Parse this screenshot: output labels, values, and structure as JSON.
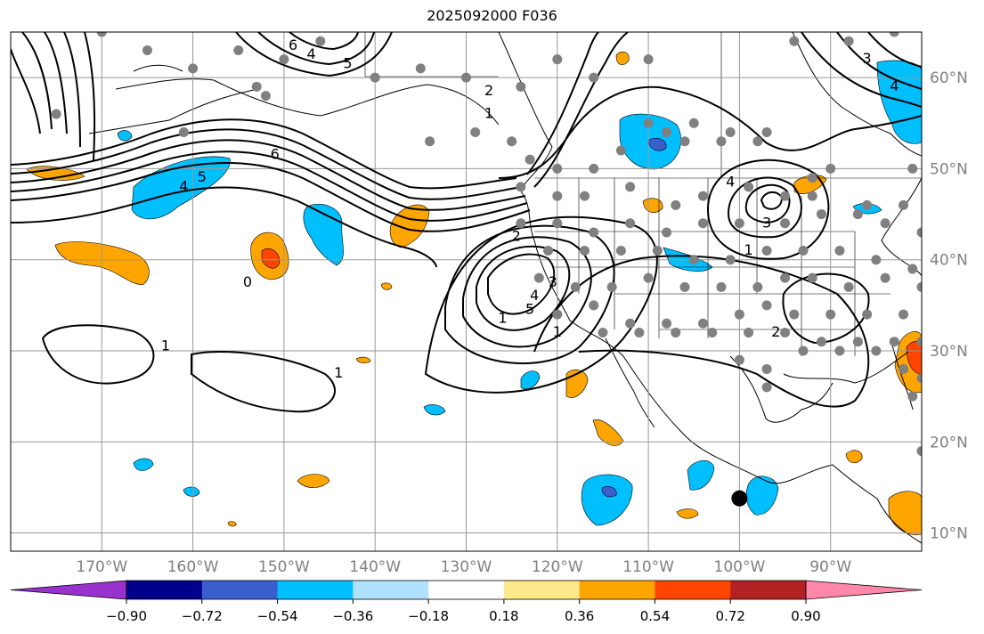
{
  "title": "2025092000 F036",
  "map": {
    "projection": "cylindrical",
    "lon_range": [
      -180,
      -80
    ],
    "lat_range": [
      8,
      65
    ],
    "lon_ticks": [
      {
        "value": -170,
        "label": "170°W"
      },
      {
        "value": -160,
        "label": "160°W"
      },
      {
        "value": -150,
        "label": "150°W"
      },
      {
        "value": -140,
        "label": "140°W"
      },
      {
        "value": -130,
        "label": "130°W"
      },
      {
        "value": -120,
        "label": "120°W"
      },
      {
        "value": -110,
        "label": "110°W"
      },
      {
        "value": -100,
        "label": "100°W"
      },
      {
        "value": -90,
        "label": "90°W"
      }
    ],
    "lat_ticks": [
      {
        "value": 10,
        "label": "10°N"
      },
      {
        "value": 20,
        "label": "20°N"
      },
      {
        "value": 30,
        "label": "30°N"
      },
      {
        "value": 40,
        "label": "40°N"
      },
      {
        "value": 50,
        "label": "50°N"
      },
      {
        "value": 60,
        "label": "60°N"
      }
    ],
    "contour_labels": [
      {
        "text": "6",
        "lon": -151,
        "lat": 51.5
      },
      {
        "text": "5",
        "lon": -159,
        "lat": 49
      },
      {
        "text": "4",
        "lon": -161,
        "lat": 48
      },
      {
        "text": "6",
        "lon": -149,
        "lat": 63.5
      },
      {
        "text": "5",
        "lon": -143,
        "lat": 61.5
      },
      {
        "text": "4",
        "lon": -147,
        "lat": 62.5
      },
      {
        "text": "2",
        "lon": -127.5,
        "lat": 58.5
      },
      {
        "text": "1",
        "lon": -127.5,
        "lat": 56
      },
      {
        "text": "2",
        "lon": -124.5,
        "lat": 42.5
      },
      {
        "text": "3",
        "lon": -120.5,
        "lat": 37.5
      },
      {
        "text": "4",
        "lon": -122.5,
        "lat": 36
      },
      {
        "text": "5",
        "lon": -123,
        "lat": 34.5
      },
      {
        "text": "1",
        "lon": -120,
        "lat": 32
      },
      {
        "text": "1",
        "lon": -163,
        "lat": 30.5
      },
      {
        "text": "1",
        "lon": -144,
        "lat": 27.5
      },
      {
        "text": "0",
        "lon": -154,
        "lat": 37.5
      },
      {
        "text": "1",
        "lon": -126,
        "lat": 33.5
      },
      {
        "text": "4",
        "lon": -101,
        "lat": 48.5
      },
      {
        "text": "3",
        "lon": -97,
        "lat": 44
      },
      {
        "text": "2",
        "lon": -96,
        "lat": 32
      },
      {
        "text": "1",
        "lon": -99,
        "lat": 41
      },
      {
        "text": "3",
        "lon": -86,
        "lat": 62
      },
      {
        "text": "4",
        "lon": -83,
        "lat": 59
      }
    ],
    "station_dots": [
      [
        -175,
        56
      ],
      [
        -170,
        65
      ],
      [
        -165,
        63
      ],
      [
        -160,
        61
      ],
      [
        -155,
        63
      ],
      [
        -153,
        59
      ],
      [
        -150,
        62
      ],
      [
        -146,
        64
      ],
      [
        -140,
        60
      ],
      [
        -135,
        61
      ],
      [
        -130,
        60
      ],
      [
        -124,
        59
      ],
      [
        -120,
        62
      ],
      [
        -116,
        60
      ],
      [
        -110,
        62
      ],
      [
        -105,
        55
      ],
      [
        -101,
        54
      ],
      [
        -97,
        54
      ],
      [
        -94,
        64
      ],
      [
        -88,
        64
      ],
      [
        -83,
        65
      ],
      [
        -161,
        54
      ],
      [
        -152,
        58
      ],
      [
        -134,
        53
      ],
      [
        -129,
        54
      ],
      [
        -125,
        53
      ],
      [
        -123,
        51
      ],
      [
        -120,
        50
      ],
      [
        -116,
        50
      ],
      [
        -113,
        52
      ],
      [
        -110,
        55
      ],
      [
        -108,
        54
      ],
      [
        -106,
        53
      ],
      [
        -102,
        53
      ],
      [
        -98,
        53
      ],
      [
        -92,
        49
      ],
      [
        -90,
        50
      ],
      [
        -81,
        50
      ],
      [
        -124,
        48
      ],
      [
        -120,
        47
      ],
      [
        -117,
        47
      ],
      [
        -112,
        48
      ],
      [
        -107,
        46
      ],
      [
        -104,
        47
      ],
      [
        -99,
        48
      ],
      [
        -95,
        47
      ],
      [
        -92,
        47
      ],
      [
        -86,
        46
      ],
      [
        -82,
        46
      ],
      [
        -124,
        44
      ],
      [
        -120,
        44
      ],
      [
        -116,
        43
      ],
      [
        -112,
        44
      ],
      [
        -108,
        43
      ],
      [
        -104,
        44
      ],
      [
        -100,
        44
      ],
      [
        -95,
        44
      ],
      [
        -91,
        45
      ],
      [
        -87,
        45
      ],
      [
        -84,
        44
      ],
      [
        -80,
        43
      ],
      [
        -121,
        41
      ],
      [
        -117,
        41
      ],
      [
        -113,
        41
      ],
      [
        -109,
        41
      ],
      [
        -105,
        40
      ],
      [
        -101,
        40
      ],
      [
        -97,
        41
      ],
      [
        -93,
        41
      ],
      [
        -89,
        41
      ],
      [
        -85,
        40
      ],
      [
        -81,
        39
      ],
      [
        -122,
        38
      ],
      [
        -118,
        37
      ],
      [
        -114,
        37
      ],
      [
        -110,
        38
      ],
      [
        -106,
        37
      ],
      [
        -102,
        37
      ],
      [
        -98,
        37
      ],
      [
        -95,
        38
      ],
      [
        -92,
        38
      ],
      [
        -88,
        37
      ],
      [
        -84,
        38
      ],
      [
        -80,
        37
      ],
      [
        -120,
        34
      ],
      [
        -116,
        35
      ],
      [
        -112,
        33
      ],
      [
        -108,
        33
      ],
      [
        -104,
        33
      ],
      [
        -100,
        34
      ],
      [
        -97,
        35
      ],
      [
        -94,
        34
      ],
      [
        -90,
        34
      ],
      [
        -86,
        34
      ],
      [
        -82,
        34
      ],
      [
        -115,
        32
      ],
      [
        -111,
        32
      ],
      [
        -107,
        32
      ],
      [
        -103,
        32
      ],
      [
        -99,
        32
      ],
      [
        -95,
        32
      ],
      [
        -91,
        31
      ],
      [
        -87,
        31
      ],
      [
        -83,
        31
      ],
      [
        -80,
        31
      ],
      [
        -100,
        29
      ],
      [
        -97,
        28
      ],
      [
        -93,
        30
      ],
      [
        -89,
        30
      ],
      [
        -85,
        30
      ],
      [
        -82,
        28
      ],
      [
        -80,
        27
      ],
      [
        -97,
        26
      ],
      [
        -81,
        25
      ],
      [
        -80,
        19
      ]
    ],
    "marker": {
      "name": "storm-center",
      "lon": -100,
      "lat": 13.8,
      "color": "#000000"
    }
  },
  "colorbar": {
    "levels": [
      -0.9,
      -0.72,
      -0.54,
      -0.36,
      -0.18,
      0.18,
      0.36,
      0.54,
      0.72,
      0.9
    ],
    "tick_labels": [
      "−0.90",
      "−0.72",
      "−0.54",
      "−0.36",
      "−0.18",
      "0.18",
      "0.36",
      "0.54",
      "0.72",
      "0.90"
    ],
    "colors": [
      "#9932cc",
      "#00008b",
      "#3a5fcd",
      "#00bfff",
      "#b0e2ff",
      "#ffffff",
      "#ffe98a",
      "#ffa500",
      "#ff4500",
      "#b22222",
      "#ff88aa"
    ]
  }
}
